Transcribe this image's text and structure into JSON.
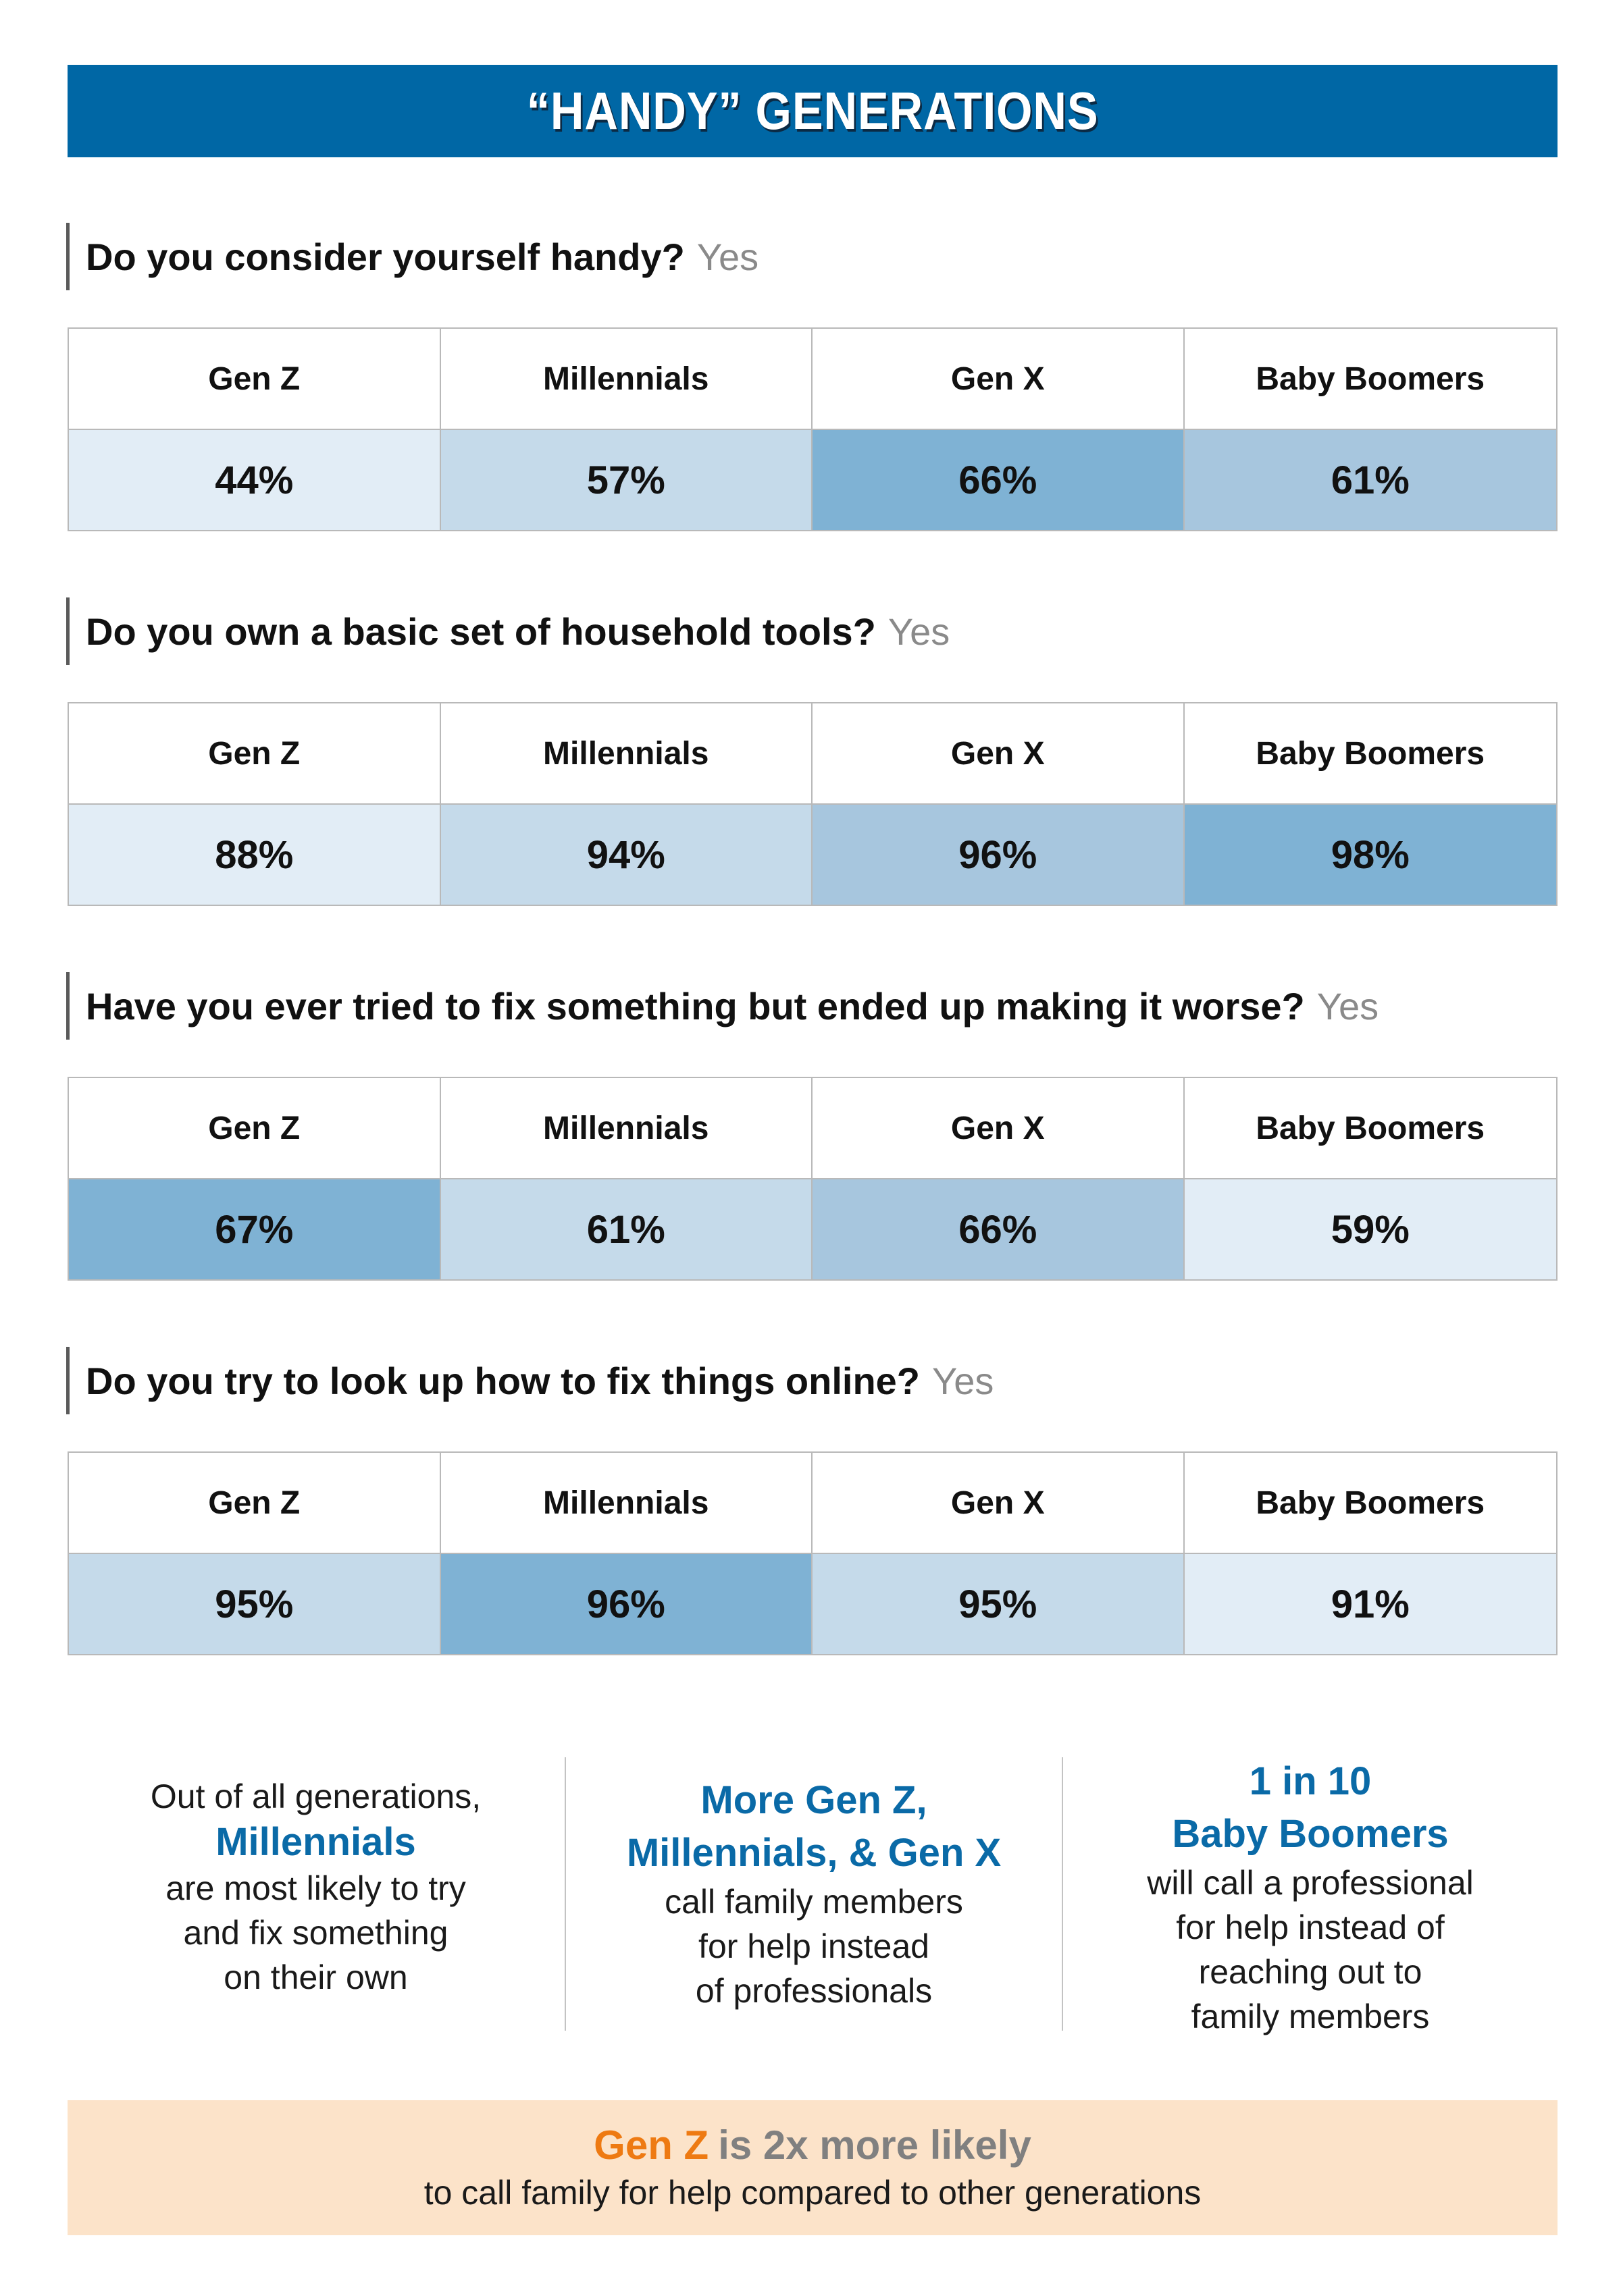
{
  "title": "“HANDY” GENERATIONS",
  "chart_data": {
    "type": "table",
    "columns": [
      "Gen Z",
      "Millennials",
      "Gen X",
      "Baby Boomers"
    ],
    "unit": "%",
    "questions": [
      {
        "question": "Do you consider yourself handy?",
        "answer": "Yes",
        "values": [
          44,
          57,
          66,
          61
        ],
        "display": [
          "44%",
          "57%",
          "66%",
          "61%"
        ]
      },
      {
        "question": "Do you own a basic set of household tools?",
        "answer": "Yes",
        "values": [
          88,
          94,
          96,
          98
        ],
        "display": [
          "88%",
          "94%",
          "96%",
          "98%"
        ]
      },
      {
        "question": "Have you ever tried to fix something but ended up making it worse?",
        "answer": "Yes",
        "values": [
          67,
          61,
          66,
          59
        ],
        "display": [
          "67%",
          "61%",
          "66%",
          "59%"
        ]
      },
      {
        "question": "Do you try to look up how to fix things online?",
        "answer": "Yes",
        "values": [
          95,
          96,
          95,
          91
        ],
        "display": [
          "95%",
          "96%",
          "95%",
          "91%"
        ]
      }
    ],
    "shade_colors": [
      "#e2edf6",
      "#c5daea",
      "#a7c6de",
      "#7fb2d4"
    ]
  },
  "footer": {
    "col1": {
      "line1": "Out of all generations,",
      "highlight": "Millennials",
      "line2": "are most likely to try",
      "line3": "and fix something",
      "line4": "on their own"
    },
    "col2": {
      "highlight1": "More Gen Z,",
      "highlight2": "Millennials, & Gen X",
      "line1": "call family members",
      "line2": "for help instead",
      "line3": "of professionals"
    },
    "col3": {
      "highlight1": "1 in 10",
      "highlight2": "Baby Boomers",
      "line1": "will call a professional",
      "line2": "for help instead of",
      "line3": "reaching out to",
      "line4": "family members"
    }
  },
  "banner": {
    "orange": "Gen Z",
    "gray": "is 2x more likely",
    "sub": "to call family for help compared to other generations"
  },
  "colors": {
    "title_bg": "#0067a5",
    "accent_blue": "#0a6aa7",
    "accent_orange": "#ee7a12",
    "banner_bg": "#fce3c9"
  }
}
